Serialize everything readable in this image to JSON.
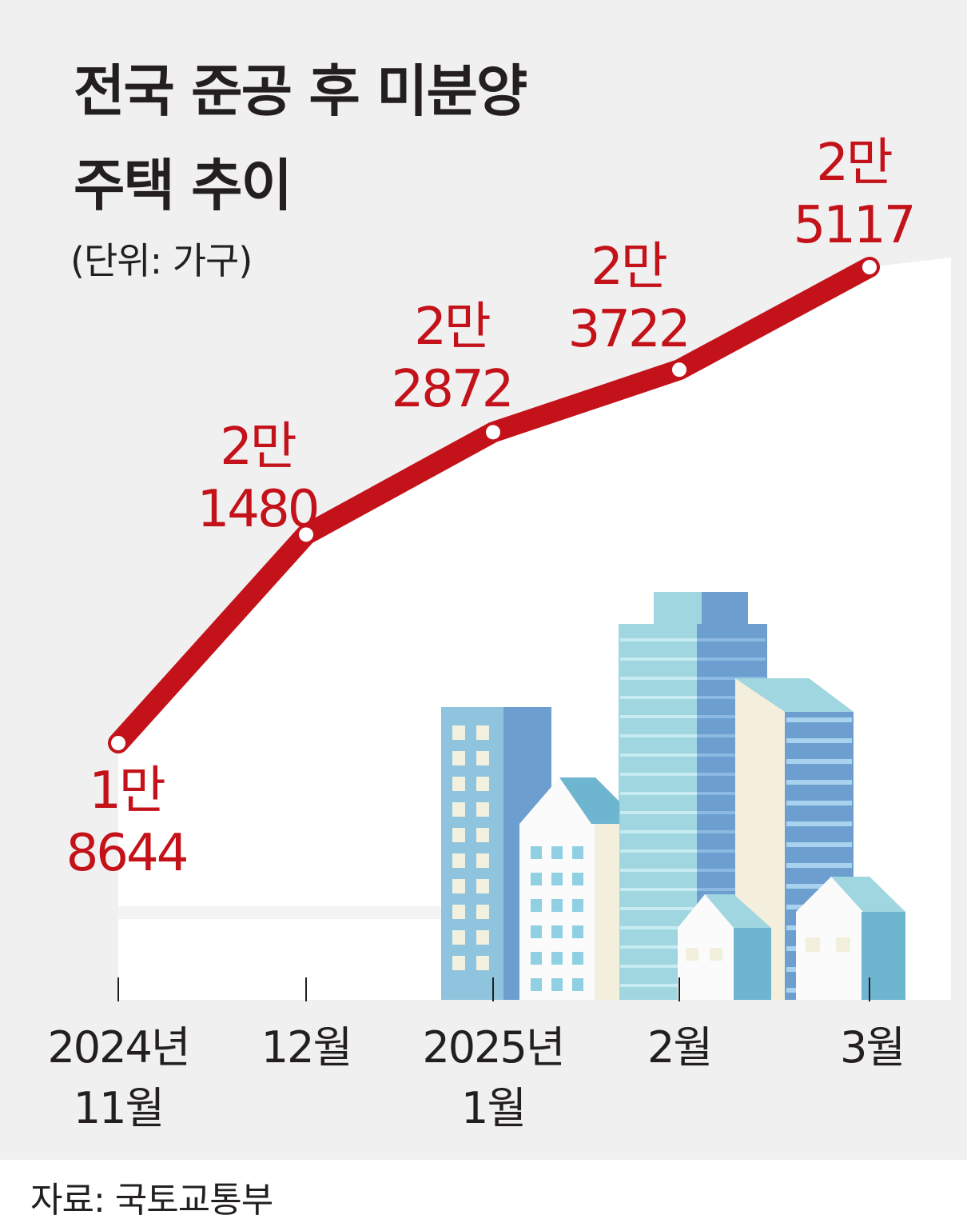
{
  "title_line1": "전국 준공 후 미분양",
  "title_line2": "주택 추이",
  "unit": "(단위: 가구)",
  "source": "자료: 국토교통부",
  "colors": {
    "line": "#c4121a",
    "text": "#231f20",
    "background": "#f0f0f0",
    "plot": "#ffffff"
  },
  "chart_data": {
    "type": "line",
    "title": "전국 준공 후 미분양 주택 추이",
    "unit": "가구",
    "categories": [
      "2024년 11월",
      "12월",
      "2025년 1월",
      "2월",
      "3월"
    ],
    "x_tick_labels": [
      [
        "2024년",
        "11월"
      ],
      [
        "12월"
      ],
      [
        "2025년",
        "1월"
      ],
      [
        "2월"
      ],
      [
        "3월"
      ]
    ],
    "values": [
      18644,
      21480,
      22872,
      23722,
      25117
    ],
    "data_labels": [
      [
        "1만",
        "8644"
      ],
      [
        "2만",
        "1480"
      ],
      [
        "2만",
        "2872"
      ],
      [
        "2만",
        "3722"
      ],
      [
        "2만",
        "5117"
      ]
    ]
  }
}
